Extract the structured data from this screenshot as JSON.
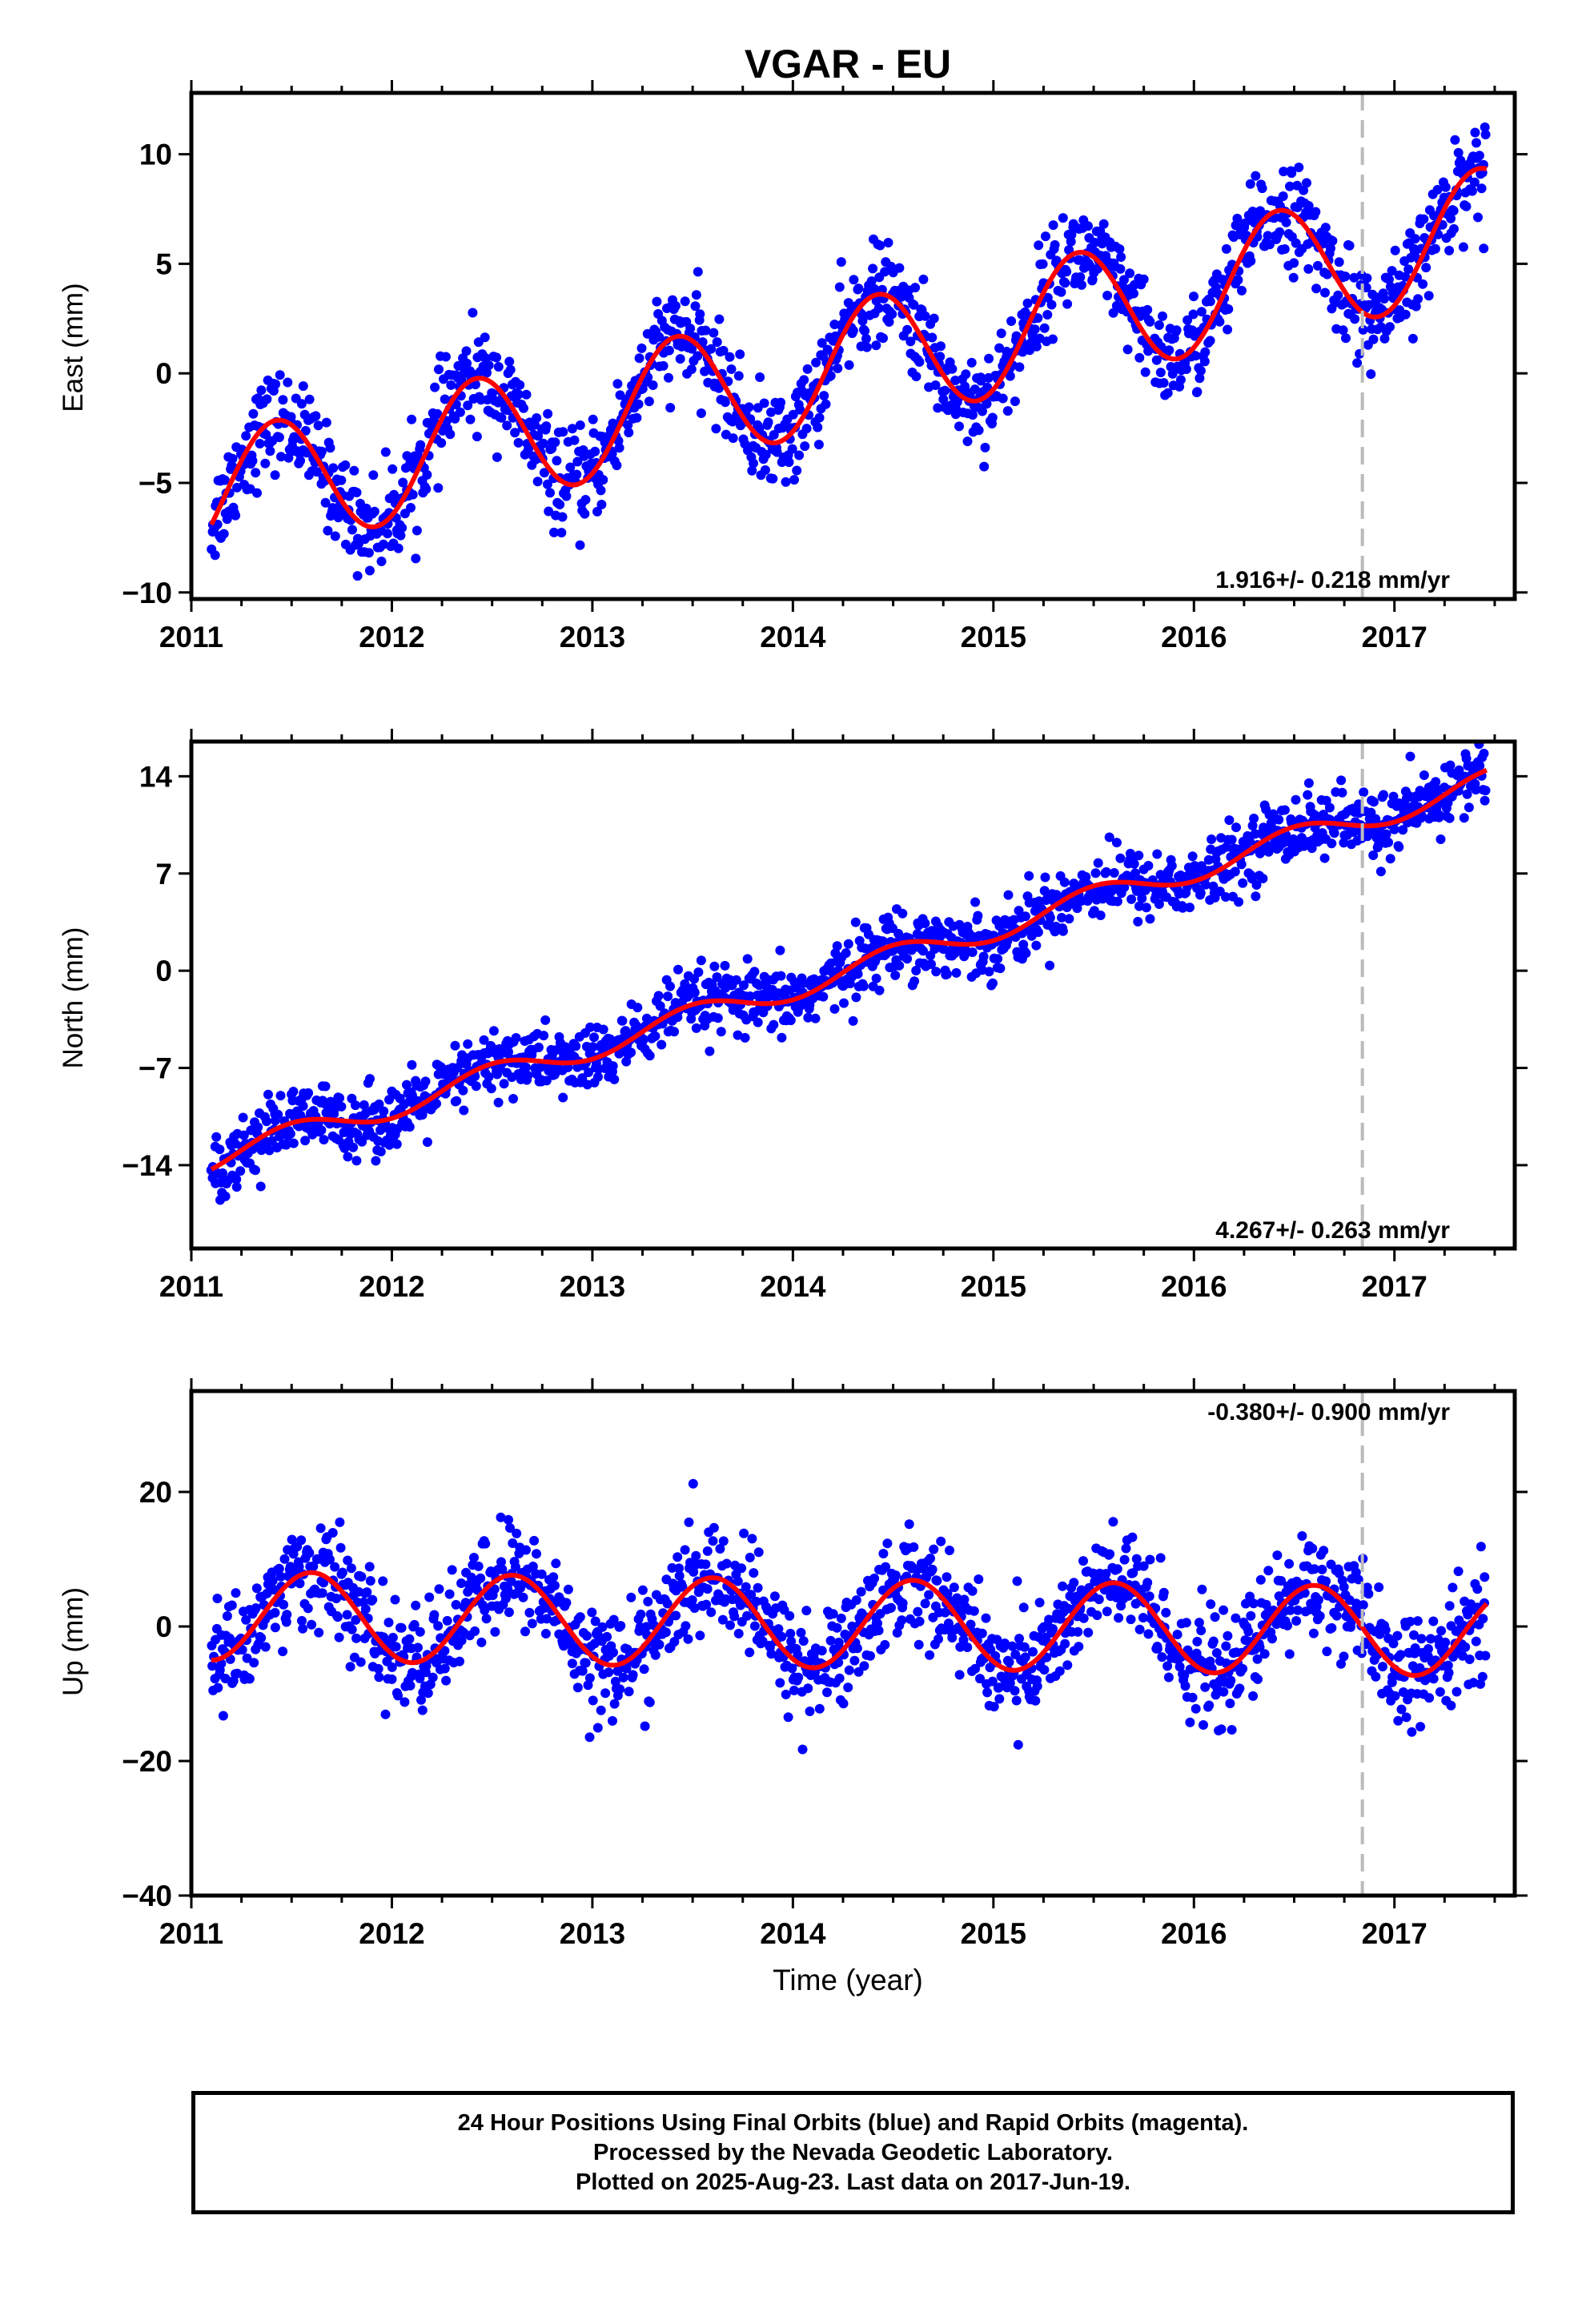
{
  "figure": {
    "title": "VGAR - EU",
    "colors": {
      "final_orbits": "#0000ff",
      "model": "#ff0000",
      "event_line": "#bbbbbb",
      "frame": "#000000"
    }
  },
  "footer": {
    "line1": "24 Hour Positions Using Final Orbits (blue) and Rapid Orbits (magenta).",
    "line2": "Processed by the Nevada Geodetic Laboratory.",
    "line3": "Plotted on 2025-Aug-23. Last data on 2017-Jun-19."
  },
  "chart_data": [
    {
      "type": "scatter",
      "title": "VGAR - EU",
      "xlabel": "",
      "ylabel": "East (mm)",
      "xlim": [
        2011.0,
        2017.6
      ],
      "ylim": [
        -10.3,
        12.8
      ],
      "xticks": [
        2011,
        2012,
        2013,
        2014,
        2015,
        2016,
        2017
      ],
      "yticks": [
        -10,
        -5,
        0,
        5,
        10
      ],
      "rate_label": "1.916+/- 0.218 mm/yr",
      "event_line_x": 2016.84,
      "grid": false,
      "model": {
        "start": 2011.1,
        "end": 2017.46,
        "start_value": -6.9,
        "rate": 1.916,
        "annual_amp": 2.9,
        "annual_peak": 2011.42,
        "offset_at_event": 0.0
      },
      "observations": {
        "start": 2011.1,
        "end": 2017.46,
        "scatter_sd": 1.1
      }
    },
    {
      "type": "scatter",
      "title": "",
      "xlabel": "",
      "ylabel": "North (mm)",
      "xlim": [
        2011.0,
        2017.6
      ],
      "ylim": [
        -20.0,
        16.5
      ],
      "xticks": [
        2011,
        2012,
        2013,
        2014,
        2015,
        2016,
        2017
      ],
      "yticks": [
        -14,
        -7,
        0,
        7,
        14
      ],
      "rate_label": "4.267+/- 0.263 mm/yr",
      "event_line_x": 2016.84,
      "grid": false,
      "model": {
        "start": 2011.1,
        "end": 2017.46,
        "start_value": -14.3,
        "rate": 4.267,
        "annual_amp": 0.9,
        "annual_peak": 2011.5,
        "offset_at_event": 0.0
      },
      "observations": {
        "start": 2011.1,
        "end": 2017.46,
        "scatter_sd": 1.2
      }
    },
    {
      "type": "scatter",
      "title": "",
      "xlabel": "Time (year)",
      "ylabel": "Up (mm)",
      "xlim": [
        2011.0,
        2017.6
      ],
      "ylim": [
        -40.0,
        35.0
      ],
      "xticks": [
        2011,
        2012,
        2013,
        2014,
        2015,
        2016,
        2017
      ],
      "yticks": [
        -40,
        -20,
        0,
        20
      ],
      "rate_label": "-0.380+/- 0.900 mm/yr",
      "event_line_x": 2016.84,
      "grid": false,
      "model": {
        "start": 2011.1,
        "end": 2017.46,
        "start_value": -5.0,
        "rate": -0.38,
        "annual_amp": 6.6,
        "annual_peak": 2011.6,
        "offset_at_event": 0.0
      },
      "observations": {
        "start": 2011.1,
        "end": 2017.46,
        "scatter_sd": 4.0
      }
    }
  ]
}
